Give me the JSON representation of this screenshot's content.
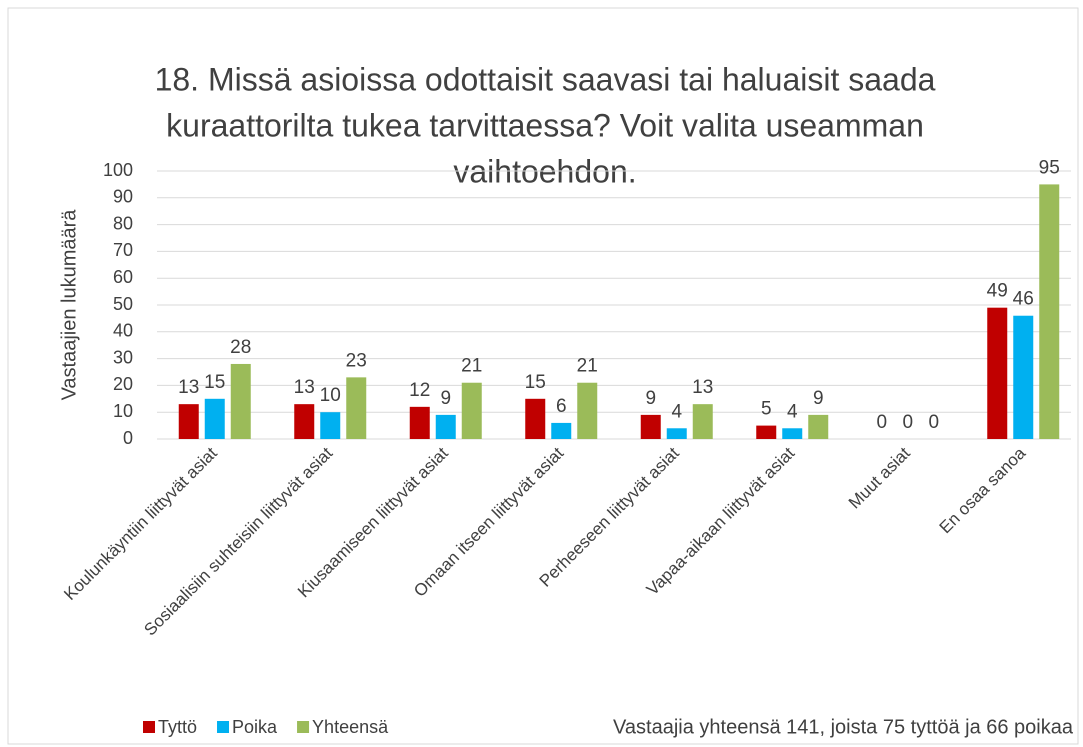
{
  "chart_data": {
    "type": "bar",
    "title": [
      "18. Missä asioissa odottaisit saavasi tai haluaisit saada",
      "kuraattorilta tukea tarvittaessa? Voit valita useamman",
      "vaihtoehdon."
    ],
    "ylabel": "Vastaajien lukumäärä",
    "categories": [
      "Koulunkäyntiin liittyvät asiat",
      "Sosiaalisiin suhteisiin liittyvät asiat",
      "Kiusaamiseen liittyvät asiat",
      "Omaan itseen liittyvät asiat",
      "Perheeseen liittyvät asiat",
      "Vapaa-aikaan liittyvät asiat",
      "Muut asiat",
      "En osaa sanoa"
    ],
    "series": [
      {
        "name": "Tyttö",
        "color": "#c00000",
        "values": [
          13,
          13,
          12,
          15,
          9,
          5,
          0,
          49
        ]
      },
      {
        "name": "Poika",
        "color": "#00b0f0",
        "values": [
          15,
          10,
          9,
          6,
          4,
          4,
          0,
          46
        ]
      },
      {
        "name": "Yhteensä",
        "color": "#9bbb59",
        "values": [
          28,
          23,
          21,
          21,
          13,
          9,
          0,
          95
        ]
      }
    ],
    "ylim": [
      0,
      100
    ],
    "yticks": [
      0,
      10,
      20,
      30,
      40,
      50,
      60,
      70,
      80,
      90,
      100
    ],
    "grid": true,
    "legend": "bottom",
    "annotation": "Vastaajia yhteensä 141, joista 75 tyttöä ja 66 poikaa"
  }
}
